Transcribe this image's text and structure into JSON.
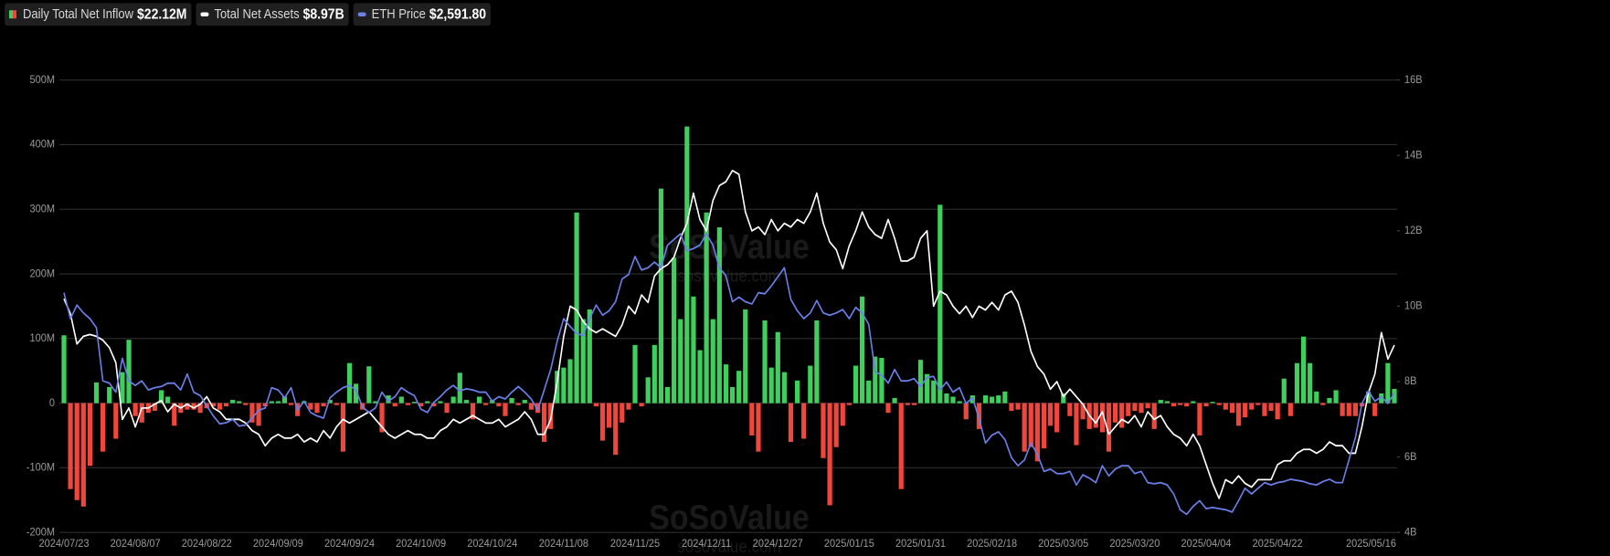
{
  "chart_data": {
    "type": "bar-line",
    "legend": [
      {
        "name": "Daily Total Net Inflow",
        "value_label": "$22.12M"
      },
      {
        "name": "Total Net Assets",
        "value_label": "$8.97B"
      },
      {
        "name": "ETH Price",
        "value_label": "$2,591.80"
      }
    ],
    "watermark": "SoSoValue",
    "watermark_url": "sosovalue.com",
    "categories": [
      "2024/07/23",
      null,
      null,
      null,
      null,
      null,
      null,
      null,
      null,
      null,
      null,
      "2024/08/07",
      null,
      null,
      null,
      null,
      null,
      null,
      null,
      null,
      null,
      null,
      "2024/08/22",
      null,
      null,
      null,
      null,
      null,
      null,
      null,
      null,
      null,
      null,
      "2024/09/09",
      null,
      null,
      null,
      null,
      null,
      null,
      null,
      null,
      null,
      null,
      "2024/09/24",
      null,
      null,
      null,
      null,
      null,
      null,
      null,
      null,
      null,
      null,
      "2024/10/09",
      null,
      null,
      null,
      null,
      null,
      null,
      null,
      null,
      null,
      null,
      "2024/10/24",
      null,
      null,
      null,
      null,
      null,
      null,
      null,
      null,
      null,
      null,
      "2024/11/08",
      null,
      null,
      null,
      null,
      null,
      null,
      null,
      null,
      null,
      null,
      "2024/11/25",
      null,
      null,
      null,
      null,
      null,
      null,
      null,
      null,
      null,
      null,
      "2024/12/11",
      null,
      null,
      null,
      null,
      null,
      null,
      null,
      null,
      null,
      null,
      "2024/12/27",
      null,
      null,
      null,
      null,
      null,
      null,
      null,
      null,
      null,
      null,
      "2025/01/15",
      null,
      null,
      null,
      null,
      null,
      null,
      null,
      null,
      null,
      null,
      "2025/01/31",
      null,
      null,
      null,
      null,
      null,
      null,
      null,
      null,
      null,
      null,
      "2025/02/18",
      null,
      null,
      null,
      null,
      null,
      null,
      null,
      null,
      null,
      null,
      "2025/03/05",
      null,
      null,
      null,
      null,
      null,
      null,
      null,
      null,
      null,
      null,
      "2025/03/20",
      null,
      null,
      null,
      null,
      null,
      null,
      null,
      null,
      null,
      null,
      "2025/04/04",
      null,
      null,
      null,
      null,
      null,
      null,
      null,
      null,
      null,
      null,
      "2025/04/22",
      null,
      null,
      null,
      null,
      null,
      null,
      null,
      null,
      null,
      null,
      null,
      null,
      null,
      null,
      null,
      null,
      null,
      "2025/05/16"
    ],
    "series": [
      {
        "name": "Daily Total Net Inflow",
        "axis": "y",
        "color": "#3ecf5c",
        "negative_color": "#f0463c",
        "values": [
          105,
          -133,
          -150,
          -160,
          -97,
          32,
          -75,
          25,
          -55,
          48,
          98,
          -20,
          -30,
          -15,
          -12,
          20,
          10,
          -35,
          -15,
          -10,
          -10,
          -15,
          -8,
          -5,
          -10,
          -5,
          5,
          3,
          -3,
          -30,
          -35,
          -5,
          3,
          3,
          10,
          -3,
          -20,
          3,
          -10,
          -15,
          -5,
          5,
          -3,
          -75,
          62,
          30,
          -10,
          57,
          3,
          -45,
          12,
          -5,
          10,
          -3,
          2,
          -5,
          3,
          -5,
          3,
          -15,
          10,
          47,
          5,
          -25,
          10,
          -3,
          5,
          -5,
          -20,
          8,
          -3,
          5,
          -10,
          -15,
          -60,
          -40,
          50,
          55,
          68,
          295,
          130,
          145,
          -5,
          -58,
          -38,
          -80,
          -30,
          -10,
          90,
          -5,
          40,
          90,
          332,
          25,
          225,
          130,
          428,
          165,
          82,
          295,
          130,
          272,
          60,
          25,
          50,
          145,
          -50,
          -75,
          128,
          55,
          110,
          48,
          -60,
          35,
          -55,
          58,
          128,
          -85,
          -158,
          -68,
          -35,
          -3,
          58,
          165,
          35,
          72,
          70,
          -15,
          8,
          -133,
          -3,
          -3,
          67,
          45,
          35,
          307,
          15,
          10,
          3,
          -25,
          12,
          -40,
          12,
          10,
          12,
          18,
          -12,
          -10,
          -75,
          -68,
          -90,
          -70,
          -35,
          -45,
          15,
          -20,
          -65,
          -25,
          -40,
          -38,
          -45,
          -75,
          -30,
          -38,
          -20,
          -12,
          -15,
          -8,
          -40,
          5,
          3,
          -5,
          -3,
          -5,
          3,
          -50,
          -5,
          2,
          -3,
          -10,
          -15,
          -35,
          -22,
          -10,
          -3,
          -20,
          -12,
          -25,
          38,
          -20,
          62,
          103,
          62,
          18,
          -3,
          8,
          20,
          -20,
          -20,
          -20,
          -5,
          18,
          -20,
          15,
          62,
          22
        ]
      },
      {
        "name": "Total Net Assets",
        "axis": "y2",
        "color": "#ffffff",
        "values": [
          10.2,
          9.8,
          9.0,
          9.2,
          9.25,
          9.2,
          9.1,
          8.9,
          8.5,
          7.0,
          7.3,
          6.8,
          7.3,
          7.3,
          7.4,
          7.5,
          7.2,
          7.4,
          7.3,
          7.4,
          7.3,
          7.4,
          7.6,
          7.3,
          7.2,
          7.0,
          7.0,
          7.0,
          6.9,
          6.7,
          6.6,
          6.3,
          6.5,
          6.6,
          6.5,
          6.5,
          6.6,
          6.4,
          6.5,
          6.4,
          6.7,
          6.5,
          6.8,
          7.0,
          6.9,
          7.0,
          7.1,
          7.2,
          7.0,
          6.8,
          6.6,
          6.5,
          6.6,
          6.7,
          6.6,
          6.6,
          6.5,
          6.5,
          6.7,
          6.8,
          7.0,
          6.9,
          7.0,
          7.1,
          7.0,
          6.9,
          6.9,
          7.0,
          6.8,
          6.9,
          7.0,
          7.2,
          7.0,
          6.6,
          6.6,
          7.0,
          8.0,
          9.2,
          10.0,
          9.9,
          9.6,
          9.4,
          9.3,
          9.4,
          9.3,
          9.2,
          9.5,
          10.0,
          9.8,
          10.3,
          10.1,
          10.8,
          11.0,
          11.1,
          11.3,
          11.8,
          12.2,
          13.0,
          12.3,
          12.0,
          12.8,
          13.2,
          13.3,
          13.6,
          13.5,
          12.5,
          12.0,
          12.1,
          11.9,
          12.3,
          12.0,
          12.2,
          12.1,
          12.3,
          12.2,
          12.5,
          13.0,
          12.2,
          11.7,
          11.5,
          11.0,
          11.6,
          12.0,
          12.5,
          12.1,
          11.9,
          11.8,
          12.3,
          11.8,
          11.2,
          11.2,
          11.3,
          11.8,
          12.0,
          10.0,
          10.4,
          10.3,
          10.0,
          9.8,
          10.0,
          9.7,
          10.0,
          9.9,
          10.1,
          9.9,
          10.3,
          10.4,
          10.1,
          9.5,
          8.8,
          8.4,
          8.2,
          7.8,
          8.0,
          7.6,
          7.8,
          7.6,
          7.4,
          7.1,
          6.9,
          7.2,
          6.6,
          6.8,
          7.0,
          6.9,
          7.1,
          6.8,
          7.2,
          7.0,
          7.1,
          6.8,
          6.6,
          6.5,
          6.3,
          6.6,
          6.3,
          5.8,
          5.3,
          4.9,
          5.4,
          5.3,
          5.5,
          5.3,
          5.2,
          5.4,
          5.4,
          5.4,
          5.8,
          5.9,
          5.9,
          6.1,
          6.2,
          6.2,
          6.1,
          6.2,
          6.4,
          6.3,
          6.3,
          6.1,
          6.1,
          6.8,
          7.7,
          8.2,
          9.3,
          8.6,
          8.97
        ]
      },
      {
        "name": "ETH Price",
        "axis": "y3",
        "color": "#6b7fe8",
        "values": [
          3480,
          3250,
          3370,
          3300,
          3250,
          3170,
          2700,
          2680,
          2600,
          2900,
          2700,
          2660,
          2700,
          2620,
          2640,
          2650,
          2680,
          2680,
          2620,
          2760,
          2600,
          2570,
          2480,
          2390,
          2320,
          2330,
          2360,
          2300,
          2310,
          2370,
          2440,
          2460,
          2640,
          2620,
          2550,
          2640,
          2440,
          2520,
          2420,
          2390,
          2370,
          2550,
          2600,
          2640,
          2660,
          2620,
          2470,
          2420,
          2460,
          2600,
          2520,
          2560,
          2640,
          2600,
          2570,
          2450,
          2420,
          2510,
          2560,
          2620,
          2660,
          2610,
          2630,
          2620,
          2600,
          2600,
          2520,
          2560,
          2540,
          2600,
          2650,
          2600,
          2540,
          2440,
          2620,
          2800,
          3050,
          3250,
          3180,
          3120,
          3100,
          3250,
          3370,
          3280,
          3320,
          3400,
          3600,
          3640,
          3800,
          3680,
          3700,
          3750,
          3700,
          3900,
          3950,
          4000,
          3850,
          3870,
          3900,
          4000,
          3900,
          3700,
          3630,
          3400,
          3440,
          3400,
          3380,
          3480,
          3470,
          3540,
          3620,
          3700,
          3420,
          3320,
          3250,
          3300,
          3410,
          3300,
          3280,
          3300,
          3330,
          3250,
          3350,
          3300,
          3200,
          2780,
          2750,
          2680,
          2800,
          2700,
          2700,
          2720,
          2650,
          2730,
          2740,
          2620,
          2690,
          2600,
          2640,
          2500,
          2550,
          2370,
          2150,
          2220,
          2250,
          2180,
          2020,
          1950,
          2000,
          2150,
          2050,
          1900,
          1920,
          1880,
          1880,
          1900,
          1780,
          1870,
          1840,
          1800,
          1950,
          1860,
          1920,
          1950,
          1950,
          1880,
          1900,
          1800,
          1790,
          1800,
          1780,
          1700,
          1560,
          1520,
          1590,
          1640,
          1570,
          1580,
          1570,
          1560,
          1540,
          1640,
          1750,
          1700,
          1750,
          1800,
          1780,
          1800,
          1810,
          1830,
          1820,
          1810,
          1790,
          1780,
          1810,
          1830,
          1800,
          1800,
          2000,
          2200,
          2500,
          2610,
          2520,
          2560,
          2500,
          2591.8
        ]
      }
    ],
    "ylim": [
      -200,
      500
    ],
    "yticks": [
      {
        "value": -200,
        "label": "-200M"
      },
      {
        "value": -100,
        "label": "-100M"
      },
      0,
      {
        "value": 100,
        "label": "100M"
      },
      {
        "value": 200,
        "label": "200M"
      },
      {
        "value": 300,
        "label": "300M"
      },
      {
        "value": 400,
        "label": "400M"
      },
      {
        "value": 500,
        "label": "500M"
      }
    ],
    "y2lim": [
      4,
      16
    ],
    "y2ticks": [
      {
        "value": 4,
        "label": "4B"
      },
      {
        "value": 6,
        "label": "6B"
      },
      {
        "value": 8,
        "label": "8B"
      },
      {
        "value": 10,
        "label": "10B"
      },
      {
        "value": 12,
        "label": "12B"
      },
      {
        "value": 14,
        "label": "14B"
      },
      {
        "value": 16,
        "label": "16B"
      }
    ],
    "y3lim": [
      1360,
      5360
    ],
    "grid": true
  }
}
